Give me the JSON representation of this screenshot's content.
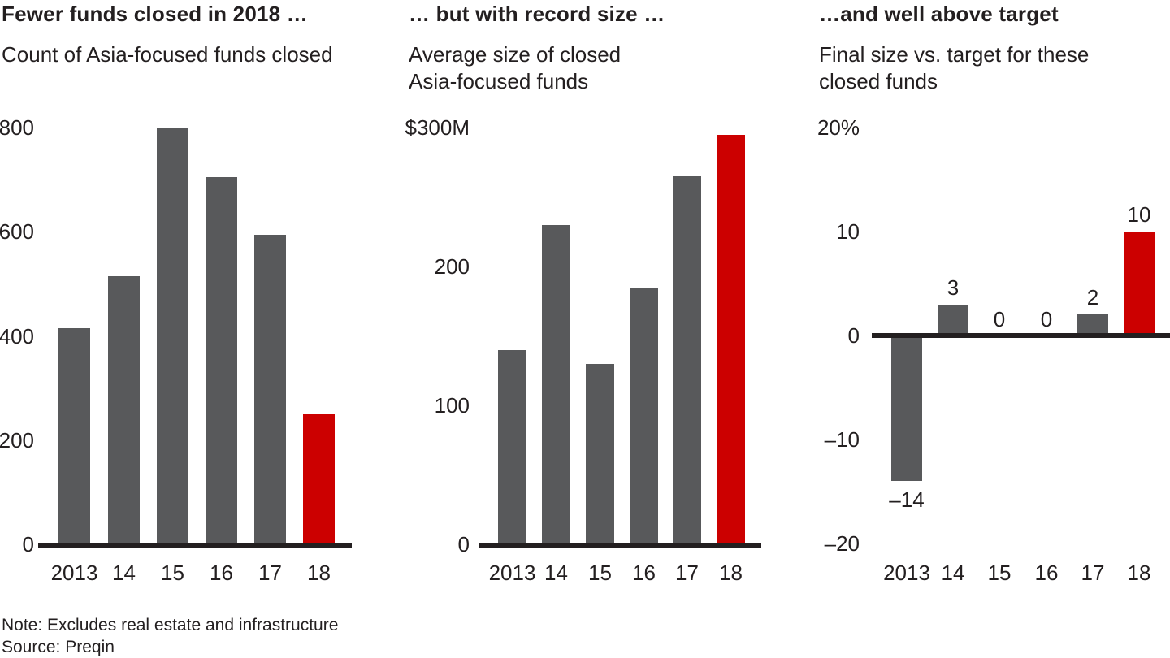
{
  "page": {
    "background": "#FFFFFF"
  },
  "colors": {
    "bar_gray": "#58595B",
    "bar_red": "#CC0000",
    "axis": "#231F20",
    "text": "#231F20"
  },
  "footer": {
    "note": "Note: Excludes real estate and infrastructure",
    "source": "Source: Preqin"
  },
  "chart_data": [
    {
      "type": "bar",
      "title": "Fewer funds closed in 2018 …",
      "subtitle": "Count of Asia-focused funds closed",
      "categories": [
        "2013",
        "14",
        "15",
        "16",
        "17",
        "18"
      ],
      "values": [
        415,
        515,
        800,
        705,
        595,
        250
      ],
      "highlight_index": 5,
      "ylim": [
        0,
        830
      ],
      "grid": false,
      "legend": false,
      "y_ticks": [
        {
          "value": 0,
          "label": "0"
        },
        {
          "value": 200,
          "label": "200"
        },
        {
          "value": 400,
          "label": "400"
        },
        {
          "value": 600,
          "label": "600"
        },
        {
          "value": 800,
          "label": "800"
        }
      ]
    },
    {
      "type": "bar",
      "title": "… but with record size …",
      "subtitle": "Average size of closed\nAsia-focused funds",
      "categories": [
        "2013",
        "14",
        "15",
        "16",
        "17",
        "18"
      ],
      "values": [
        140,
        230,
        130,
        185,
        265,
        295
      ],
      "highlight_index": 5,
      "ylim": [
        0,
        310
      ],
      "grid": false,
      "legend": false,
      "y_ticks": [
        {
          "value": 0,
          "label": "0"
        },
        {
          "value": 100,
          "label": "100"
        },
        {
          "value": 200,
          "label": "200"
        },
        {
          "value": 300,
          "label": "$300M"
        }
      ]
    },
    {
      "type": "bar",
      "title": "…and well above target",
      "subtitle": "Final size vs. target for these\nclosed funds",
      "categories": [
        "2013",
        "14",
        "15",
        "16",
        "17",
        "18"
      ],
      "values": [
        -14,
        3,
        0,
        0,
        2,
        10
      ],
      "data_labels": [
        "–14",
        "3",
        "0",
        "0",
        "2",
        "10"
      ],
      "highlight_index": 5,
      "ylim": [
        -20,
        20
      ],
      "grid": false,
      "legend": false,
      "y_ticks": [
        {
          "value": -20,
          "label": "–20"
        },
        {
          "value": -10,
          "label": "–10"
        },
        {
          "value": 0,
          "label": "0"
        },
        {
          "value": 10,
          "label": "10"
        },
        {
          "value": 20,
          "label": "20%"
        }
      ]
    }
  ]
}
